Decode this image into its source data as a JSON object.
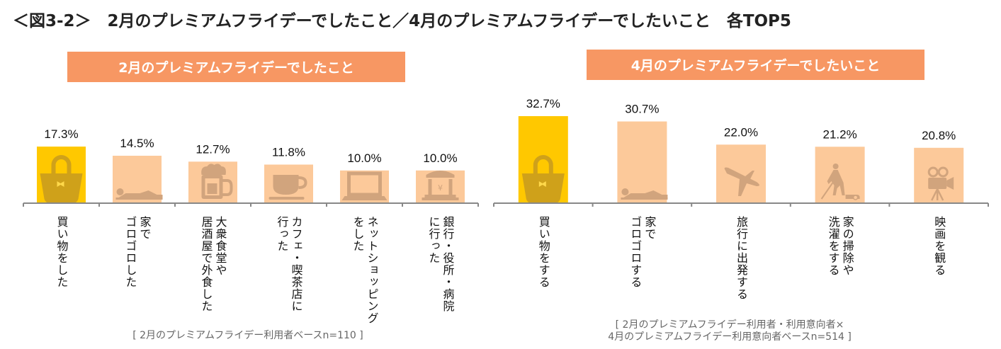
{
  "title": "＜図3-2＞　2月のプレミアムフライデーでしたこと／4月のプレミアムフライデーでしたいこと　各TOP5",
  "colors": {
    "banner": "#F79763",
    "highlight": "#FFC800",
    "bar": "#FCC99A",
    "icon_highlight": "#CFA11A",
    "icon": "#D1A47D",
    "axis": "#888888"
  },
  "chart_data": [
    {
      "type": "bar",
      "title": "2月のプレミアムフライデーでしたこと",
      "unit": "%",
      "categories": [
        [
          "買い物をした"
        ],
        [
          "家で",
          "ゴロゴロした"
        ],
        [
          "大衆食堂や",
          "居酒屋で外食した"
        ],
        [
          "カフェ・喫茶店に",
          "行った"
        ],
        [
          "ネットショッピング",
          "をした"
        ],
        [
          "銀行・役所・病院",
          "に行った"
        ]
      ],
      "values": [
        17.3,
        14.5,
        12.7,
        11.8,
        10.0,
        10.0
      ],
      "labels": [
        "17.3%",
        "14.5%",
        "12.7%",
        "11.8%",
        "10.0%",
        "10.0%"
      ],
      "icons": [
        "bag-icon",
        "lying-person-icon",
        "beer-mug-icon",
        "coffee-cup-icon",
        "laptop-icon",
        "bank-icon"
      ],
      "highlight_index": 0,
      "note": "[ 2月のプレミアムフライデー利用者ベースn=110 ]"
    },
    {
      "type": "bar",
      "title": "4月のプレミアムフライデーでしたいこと",
      "unit": "%",
      "categories": [
        [
          "買い物をする"
        ],
        [
          "家で",
          "ゴロゴロする"
        ],
        [
          "旅行に出発する"
        ],
        [
          "家の掃除や",
          "洗濯をする"
        ],
        [
          "映画を観る"
        ]
      ],
      "values": [
        32.7,
        30.7,
        22.0,
        21.2,
        20.8
      ],
      "labels": [
        "32.7%",
        "30.7%",
        "22.0%",
        "21.2%",
        "20.8%"
      ],
      "icons": [
        "bag-icon",
        "lying-person-icon",
        "airplane-icon",
        "vacuum-cleaning-icon",
        "movie-camera-icon"
      ],
      "highlight_index": 0,
      "note_lines": [
        "[ 2月のプレミアムフライデー利用者・利用意向者×",
        "4月のプレミアムフライデー利用意向者ベースn=514 ]"
      ]
    }
  ]
}
